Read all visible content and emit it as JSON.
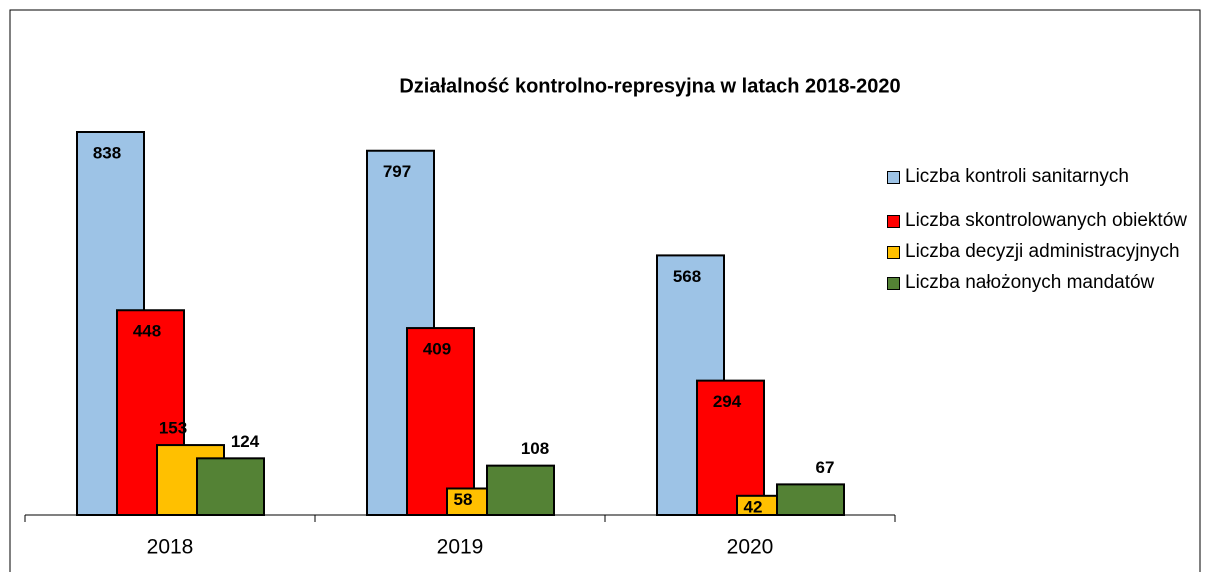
{
  "chart_data": {
    "type": "bar",
    "title": "Działalność kontrolno-represyjna w latach 2018-2020",
    "categories": [
      "2018",
      "2019",
      "2020"
    ],
    "series": [
      {
        "name": "Liczba kontroli sanitarnych",
        "color": "#9dc3e6",
        "values": [
          838,
          797,
          568
        ]
      },
      {
        "name": "Liczba skontrolowanych obiektów",
        "color": "#ff0000",
        "values": [
          448,
          409,
          294
        ]
      },
      {
        "name": "Liczba decyzji administracyjnych",
        "color": "#ffc000",
        "values": [
          153,
          58,
          42
        ]
      },
      {
        "name": "Liczba nałożonych mandatów",
        "color": "#548235",
        "values": [
          124,
          108,
          67
        ]
      }
    ],
    "legend": "right"
  }
}
